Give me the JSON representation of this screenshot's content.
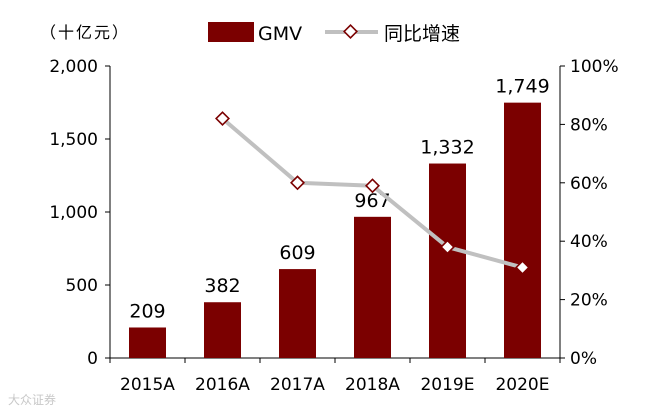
{
  "chart_data": {
    "type": "bar+line",
    "unit_label": "（十亿元）",
    "categories": [
      "2015A",
      "2016A",
      "2017A",
      "2018A",
      "2019E",
      "2020E"
    ],
    "series": [
      {
        "name": "GMV",
        "kind": "bar",
        "axis": "left",
        "color": "#7b0000",
        "values": [
          209,
          382,
          609,
          967,
          1332,
          1749
        ],
        "labels": [
          "209",
          "382",
          "609",
          "967",
          "1,332",
          "1,749"
        ]
      },
      {
        "name": "同比增速",
        "kind": "line",
        "axis": "right",
        "color": "#c0c0c0",
        "marker_color": "#7b0000",
        "values": [
          null,
          82,
          60,
          59,
          38,
          31
        ]
      }
    ],
    "left_axis": {
      "min": 0,
      "max": 2000,
      "ticks": [
        0,
        500,
        1000,
        1500,
        2000
      ],
      "tick_labels": [
        "0",
        "500",
        "1,000",
        "1,500",
        "2,000"
      ]
    },
    "right_axis": {
      "min": 0,
      "max": 100,
      "ticks": [
        0,
        20,
        40,
        60,
        80,
        100
      ],
      "tick_labels": [
        "0%",
        "20%",
        "40%",
        "60%",
        "80%",
        "100%"
      ]
    },
    "legend": {
      "position": "top",
      "items": [
        "GMV",
        "同比增速"
      ]
    }
  },
  "watermark": "大众证券"
}
